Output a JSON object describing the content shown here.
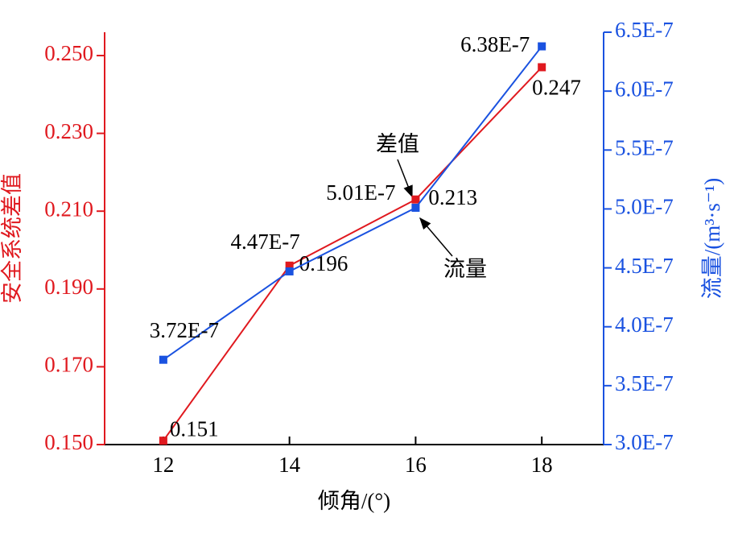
{
  "chart_data": {
    "type": "line",
    "x": [
      12,
      14,
      16,
      18
    ],
    "xlabel": "倾角/(°)",
    "ylabel": "安全系统差值",
    "y2label": "流量/(m³·s⁻¹)",
    "xlim": [
      11.07,
      18.98
    ],
    "xticks": [
      12,
      14,
      16,
      18
    ],
    "ylim": [
      0.15,
      0.256
    ],
    "yticks": [
      {
        "value": 0.15,
        "label": "0.150"
      },
      {
        "value": 0.17,
        "label": "0.170"
      },
      {
        "value": 0.19,
        "label": "0.190"
      },
      {
        "value": 0.21,
        "label": "0.210"
      },
      {
        "value": 0.23,
        "label": "0.230"
      },
      {
        "value": 0.25,
        "label": "0.250"
      }
    ],
    "y2lim": [
      3e-07,
      6.5e-07
    ],
    "y2ticks": [
      {
        "value": 3e-07,
        "label": "3.0E-7"
      },
      {
        "value": 3.5e-07,
        "label": "3.5E-7"
      },
      {
        "value": 4e-07,
        "label": "4.0E-7"
      },
      {
        "value": 4.5e-07,
        "label": "4.5E-7"
      },
      {
        "value": 5e-07,
        "label": "5.0E-7"
      },
      {
        "value": 5.5e-07,
        "label": "5.5E-7"
      },
      {
        "value": 6e-07,
        "label": "6.0E-7"
      },
      {
        "value": 6.5e-07,
        "label": "6.5E-7"
      }
    ],
    "series": [
      {
        "color": "#e0191f",
        "values": [
          0.151,
          0.196,
          0.213,
          0.247
        ]
      },
      {
        "color": "#1a52e0",
        "axis": "y2",
        "values": [
          3.72e-07,
          4.47e-07,
          5.01e-07,
          6.38e-07
        ],
        "value_labels": [
          "3.72E-7",
          "4.47E-7",
          "5.01E-7",
          "6.38E-7"
        ]
      }
    ],
    "annotations": [
      "差值",
      "流量"
    ]
  }
}
